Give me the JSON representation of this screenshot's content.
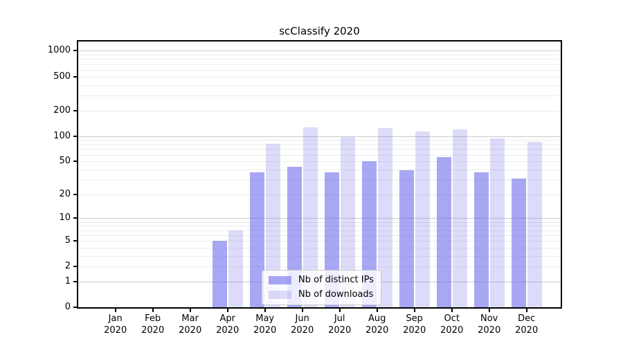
{
  "title": "scClassify 2020",
  "legend": {
    "items": [
      {
        "label": "Nb of distinct IPs",
        "color_hex": "#a7a7f3"
      },
      {
        "label": "Nb of downloads",
        "color_hex": "#dcdcf9"
      }
    ],
    "position": "lower center"
  },
  "chart_data": {
    "type": "bar",
    "title": "scClassify 2020",
    "categories": [
      "Jan 2020",
      "Feb 2020",
      "Mar 2020",
      "Apr 2020",
      "May 2020",
      "Jun 2020",
      "Jul 2020",
      "Aug 2020",
      "Sep 2020",
      "Oct 2020",
      "Nov 2020",
      "Dec 2020"
    ],
    "month_labels": [
      "Jan",
      "Feb",
      "Mar",
      "Apr",
      "May",
      "Jun",
      "Jul",
      "Aug",
      "Sep",
      "Oct",
      "Nov",
      "Dec"
    ],
    "year": "2020",
    "series": [
      {
        "name": "Nb of distinct IPs",
        "color": "#6c6ceb",
        "alpha": 0.6,
        "values": [
          0,
          0,
          0,
          5,
          37,
          43,
          37,
          50,
          39,
          56,
          37,
          31
        ]
      },
      {
        "name": "Nb of downloads",
        "color": "#7373e7",
        "alpha": 0.25,
        "values": [
          0,
          0,
          0,
          7,
          80,
          127,
          98,
          125,
          113,
          120,
          94,
          86
        ]
      }
    ],
    "xlabel": "",
    "ylabel": "",
    "yscale": "log1p",
    "yticks": [
      0,
      1,
      2,
      5,
      10,
      20,
      50,
      100,
      200,
      500,
      1000
    ],
    "ylim": [
      0,
      1275
    ],
    "grid": {
      "major_lines": [
        1,
        10,
        100,
        1000
      ],
      "minor_lines": [
        2,
        3,
        4,
        5,
        6,
        7,
        8,
        9,
        20,
        30,
        40,
        50,
        60,
        70,
        80,
        90,
        200,
        300,
        400,
        500,
        600,
        700,
        800,
        900
      ]
    },
    "legend_position": "lower center"
  }
}
